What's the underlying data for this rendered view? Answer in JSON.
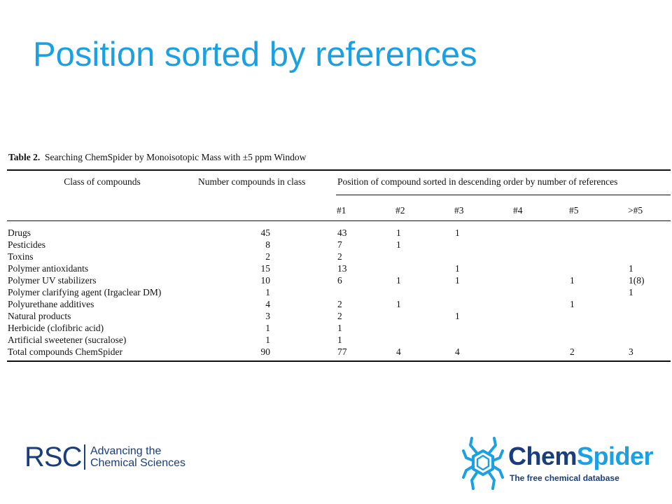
{
  "slide": {
    "title": "Position sorted by references"
  },
  "table": {
    "caption_label": "Table 2.",
    "caption_text": "Searching ChemSpider by Monoisotopic Mass with ±5 ppm Window",
    "headers": {
      "class": "Class of compounds",
      "number": "Number compounds in class",
      "position": "Position of compound sorted in descending order by number of references",
      "positions": [
        "#1",
        "#2",
        "#3",
        "#4",
        "#5",
        ">#5"
      ]
    },
    "rows": [
      {
        "class": "Drugs",
        "number": "45",
        "positions": [
          "43",
          "1",
          "1",
          "",
          "",
          ""
        ]
      },
      {
        "class": "Pesticides",
        "number": "8",
        "positions": [
          "7",
          "1",
          "",
          "",
          "",
          ""
        ]
      },
      {
        "class": "Toxins",
        "number": "2",
        "positions": [
          "2",
          "",
          "",
          "",
          "",
          ""
        ]
      },
      {
        "class": "Polymer antioxidants",
        "number": "15",
        "positions": [
          "13",
          "",
          "1",
          "",
          "",
          "1"
        ]
      },
      {
        "class": "Polymer UV stabilizers",
        "number": "10",
        "positions": [
          "6",
          "1",
          "1",
          "",
          "1",
          "1(8)"
        ]
      },
      {
        "class": "Polymer clarifying agent (Irgaclear DM)",
        "number": "1",
        "positions": [
          "",
          "",
          "",
          "",
          "",
          "1"
        ]
      },
      {
        "class": "Polyurethane additives",
        "number": "4",
        "positions": [
          "2",
          "1",
          "",
          "",
          "1",
          ""
        ]
      },
      {
        "class": "Natural products",
        "number": "3",
        "positions": [
          "2",
          "",
          "1",
          "",
          "",
          ""
        ]
      },
      {
        "class": "Herbicide (clofibric acid)",
        "number": "1",
        "positions": [
          "1",
          "",
          "",
          "",
          "",
          ""
        ]
      },
      {
        "class": "Artificial sweetener (sucralose)",
        "number": "1",
        "positions": [
          "1",
          "",
          "",
          "",
          "",
          ""
        ]
      },
      {
        "class": "Total compounds ChemSpider",
        "number": "90",
        "positions": [
          "77",
          "4",
          "4",
          "",
          "2",
          "3"
        ]
      }
    ]
  },
  "logos": {
    "rsc_mark": "RSC",
    "rsc_tagline_line1": "Advancing the",
    "rsc_tagline_line2": "Chemical Sciences",
    "chemspider_part1": "Chem",
    "chemspider_part2": "Spider",
    "chemspider_tagline": "The free chemical database"
  },
  "colors": {
    "title": "#1ba1e2",
    "rsc_navy": "#1a3d7c",
    "chemspider_blue": "#1ba1e2"
  }
}
